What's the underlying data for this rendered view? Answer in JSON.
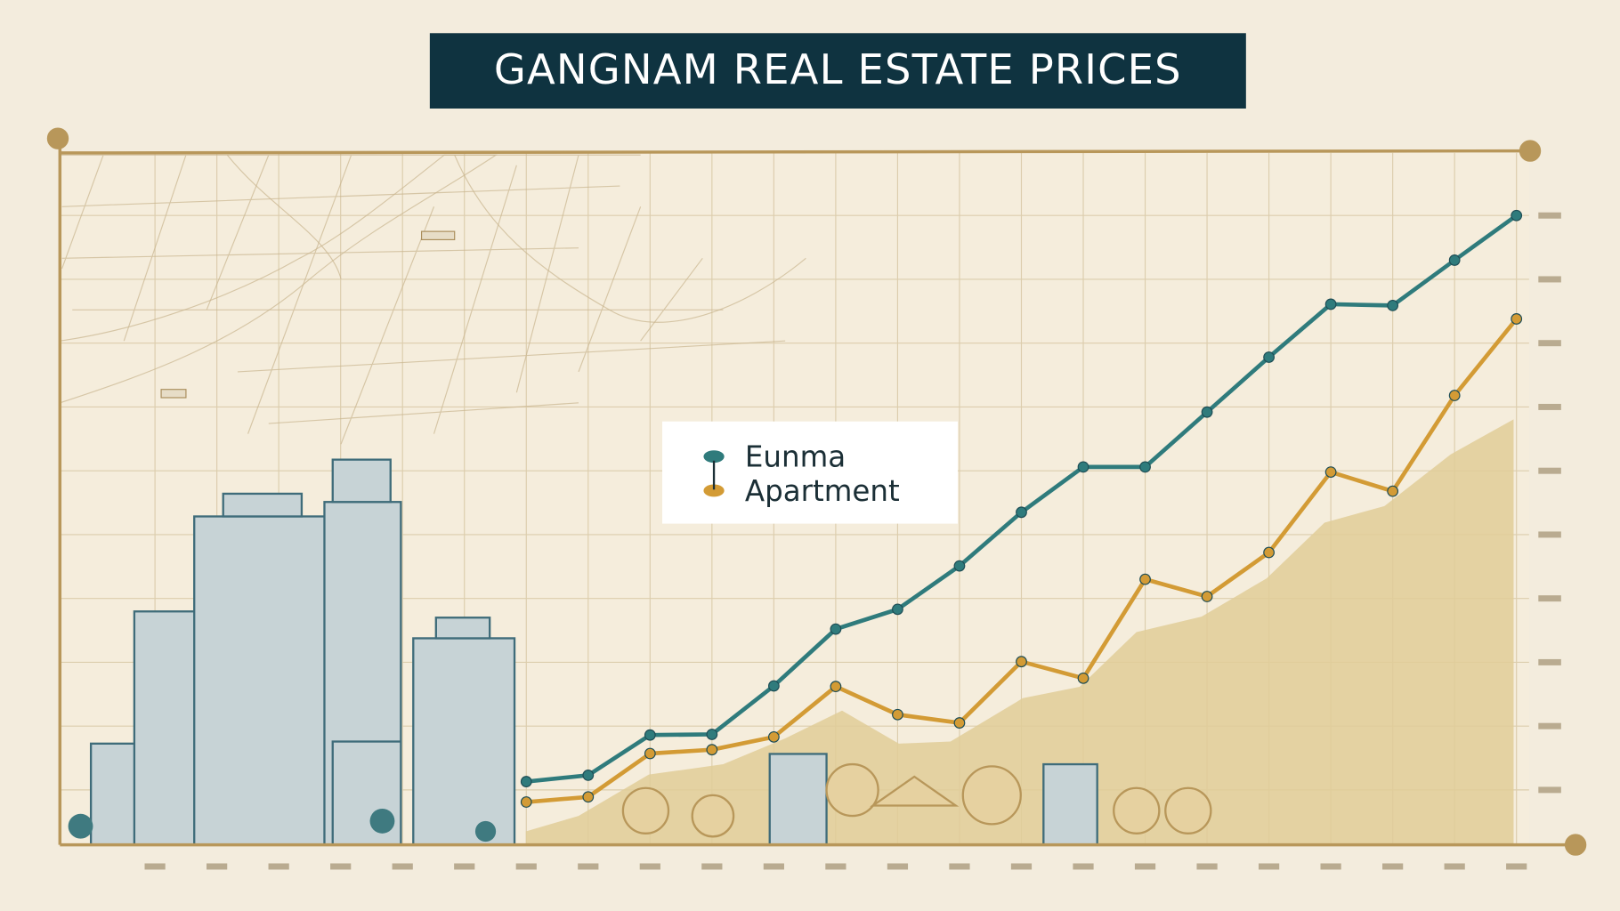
{
  "chart_data": {
    "type": "line",
    "title": "GANGNAM REAL ESTATE PRICES",
    "categories": [
      null,
      null,
      null,
      null,
      null,
      null,
      null,
      null,
      null,
      null,
      null,
      null,
      null,
      null,
      null,
      null,
      null,
      null,
      null,
      null,
      null,
      null,
      null
    ],
    "series": [
      {
        "name": "Eunma",
        "color": "#2f7b7c",
        "values": [
          null,
          null,
          null,
          null,
          null,
          null,
          11.3,
          12.3,
          18.6,
          18.7,
          26.3,
          35.2,
          38.3,
          45.1,
          53.5,
          60.6,
          60.6,
          69.2,
          77.8,
          86.1,
          85.9,
          93.0,
          100.0
        ]
      },
      {
        "name": "Apartment",
        "color": "#d39b35",
        "values": [
          null,
          null,
          null,
          null,
          null,
          null,
          8.1,
          8.9,
          15.7,
          16.3,
          18.3,
          26.2,
          21.8,
          20.5,
          30.1,
          27.5,
          43.0,
          40.3,
          47.2,
          59.8,
          56.8,
          71.8,
          83.8
        ]
      }
    ],
    "ylim": [
      1.4,
      109.8
    ],
    "yticks": [
      10,
      20,
      30,
      40,
      50,
      60,
      70,
      80,
      90,
      100
    ],
    "grid": true
  }
}
